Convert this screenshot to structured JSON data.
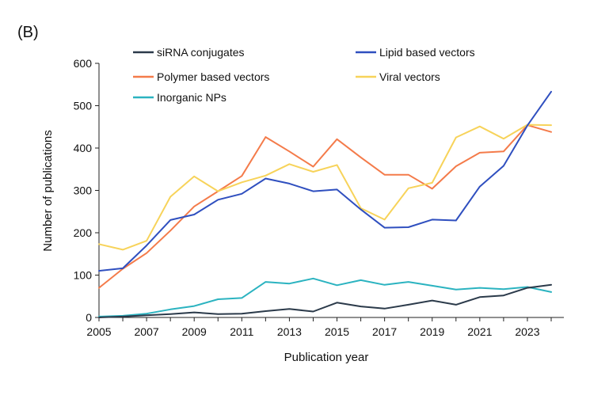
{
  "panel_label": "(B)",
  "chart_data": {
    "type": "line",
    "xlabel": "Publication year",
    "ylabel": "Number of publications",
    "xlim": [
      2005,
      2024
    ],
    "ylim": [
      0,
      600
    ],
    "x_ticks": [
      2005,
      2007,
      2009,
      2011,
      2013,
      2015,
      2017,
      2019,
      2021,
      2023
    ],
    "y_ticks": [
      0,
      100,
      200,
      300,
      400,
      500,
      600
    ],
    "grid": false,
    "legend_position": "top",
    "x": [
      2005,
      2006,
      2007,
      2008,
      2009,
      2010,
      2011,
      2012,
      2013,
      2014,
      2015,
      2016,
      2017,
      2018,
      2019,
      2020,
      2021,
      2022,
      2023,
      2024
    ],
    "series": [
      {
        "name": "siRNA conjugates",
        "color": "#2b3a4a",
        "values": [
          0,
          2,
          5,
          8,
          12,
          8,
          9,
          15,
          20,
          14,
          35,
          26,
          21,
          30,
          40,
          30,
          48,
          52,
          70,
          77
        ]
      },
      {
        "name": "Lipid based vectors",
        "color": "#2f4fbf",
        "values": [
          110,
          116,
          170,
          230,
          243,
          278,
          292,
          328,
          316,
          298,
          302,
          255,
          212,
          213,
          231,
          229,
          309,
          358,
          453,
          533
        ]
      },
      {
        "name": "Polymer based vectors",
        "color": "#f47b4a",
        "values": [
          70,
          115,
          152,
          205,
          262,
          298,
          334,
          426,
          392,
          356,
          421,
          378,
          337,
          337,
          304,
          357,
          389,
          392,
          454,
          438
        ]
      },
      {
        "name": "Viral vectors",
        "color": "#f7d35a",
        "values": [
          173,
          160,
          181,
          285,
          333,
          298,
          319,
          335,
          362,
          344,
          360,
          258,
          231,
          305,
          318,
          425,
          451,
          422,
          455,
          454
        ]
      },
      {
        "name": "Inorganic NPs",
        "color": "#2bb3c0",
        "values": [
          2,
          4,
          9,
          19,
          27,
          43,
          46,
          84,
          80,
          92,
          76,
          88,
          77,
          84,
          75,
          66,
          70,
          67,
          72,
          60
        ]
      }
    ]
  }
}
